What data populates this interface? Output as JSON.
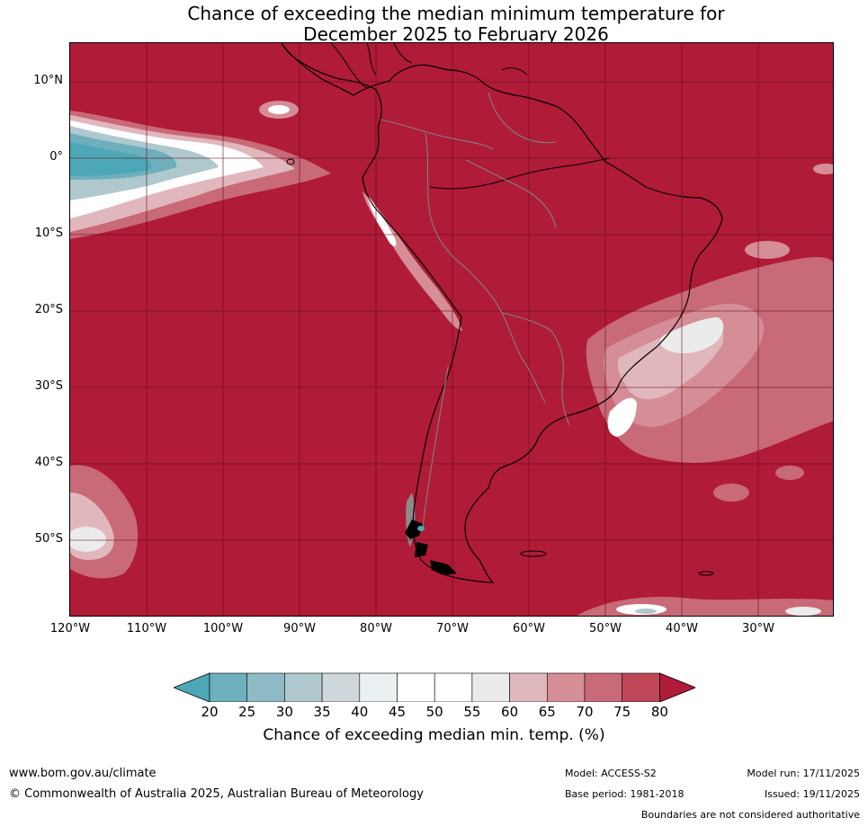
{
  "title": {
    "line1": "Chance of exceeding the median minimum temperature for",
    "line2": "December 2025 to February 2026"
  },
  "map": {
    "region": "South America",
    "lat_labels": [
      "10°N",
      "0°",
      "10°S",
      "20°S",
      "30°S",
      "40°S",
      "50°S"
    ],
    "lon_labels": [
      "120°W",
      "110°W",
      "100°W",
      "90°W",
      "80°W",
      "70°W",
      "60°W",
      "50°W",
      "40°W",
      "30°W"
    ]
  },
  "colorbar": {
    "ticks": [
      "20",
      "25",
      "30",
      "35",
      "40",
      "45",
      "50",
      "55",
      "60",
      "65",
      "70",
      "75",
      "80"
    ],
    "colors": [
      "#4DA7B6",
      "#6DAFBC",
      "#8FBAC5",
      "#AEC8CE",
      "#CFD7DA",
      "#EBF0F2",
      "#FFFFFF",
      "#FFFFFF",
      "#EBEBEB",
      "#E1B7BE",
      "#D58D97",
      "#C86A77",
      "#BE4656",
      "#B01B37"
    ],
    "label": "Chance of exceeding median min. temp. (%)"
  },
  "footer": {
    "website": "www.bom.gov.au/climate",
    "copyright": "© Commonwealth of Australia 2025, Australian Bureau of Meteorology",
    "model": "Model: ACCESS-S2",
    "base_period": "Base period: 1981-2018",
    "model_run": "Model run: 17/11/2025",
    "issued": "Issued: 19/11/2025",
    "disclaimer": "Boundaries are not considered authoritative"
  }
}
